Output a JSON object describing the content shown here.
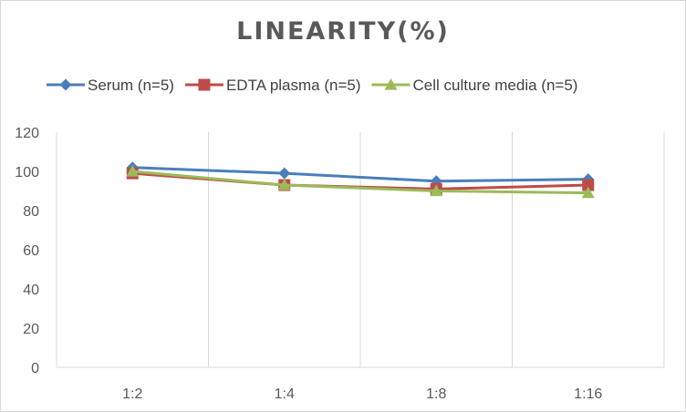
{
  "chart_data": {
    "type": "line",
    "title": "LINEARITY(%)",
    "xlabel": "",
    "ylabel": "",
    "categories": [
      "1:2",
      "1:4",
      "1:8",
      "1:16"
    ],
    "ylim": [
      0,
      120
    ],
    "yticks": [
      0,
      20,
      40,
      60,
      80,
      100,
      120
    ],
    "grid": "vertical",
    "legend_position": "top",
    "series": [
      {
        "name": "Serum (n=5)",
        "values": [
          102,
          99,
          95,
          96
        ],
        "color": "#4a7ebb",
        "marker": "diamond"
      },
      {
        "name": "EDTA plasma (n=5)",
        "values": [
          99,
          93,
          91,
          93
        ],
        "color": "#be4b48",
        "marker": "square"
      },
      {
        "name": "Cell culture media (n=5)",
        "values": [
          100,
          93,
          90,
          89
        ],
        "color": "#9bbb59",
        "marker": "triangle"
      }
    ]
  }
}
